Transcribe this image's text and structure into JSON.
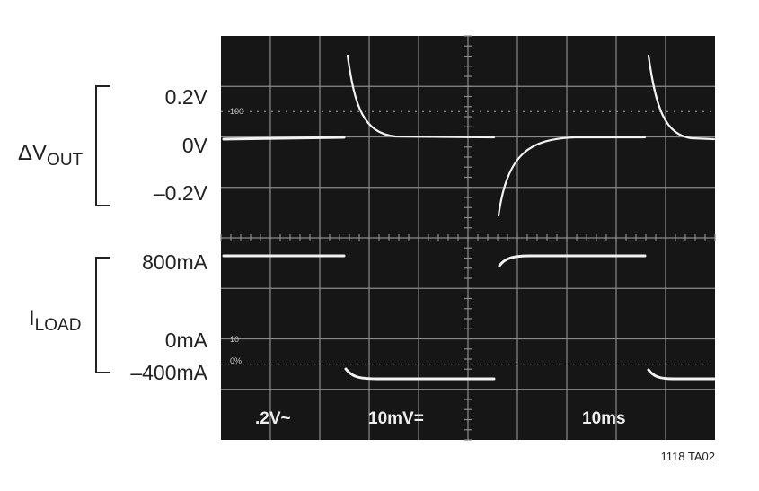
{
  "labels": {
    "dv": {
      "main": "ΔV",
      "sub": "OUT"
    },
    "dv_ticks": [
      "0.2V",
      "0V",
      "–0.2V"
    ],
    "iload": {
      "main": "I",
      "sub": "LOAD"
    },
    "i_ticks": [
      "800mA",
      "0mA",
      "–400mA"
    ]
  },
  "screen": {
    "marks": [
      "100",
      "10",
      "0%"
    ],
    "readouts": [
      ".2V~",
      "10mV=",
      "10ms"
    ]
  },
  "figure_id": "1118 TA02"
}
